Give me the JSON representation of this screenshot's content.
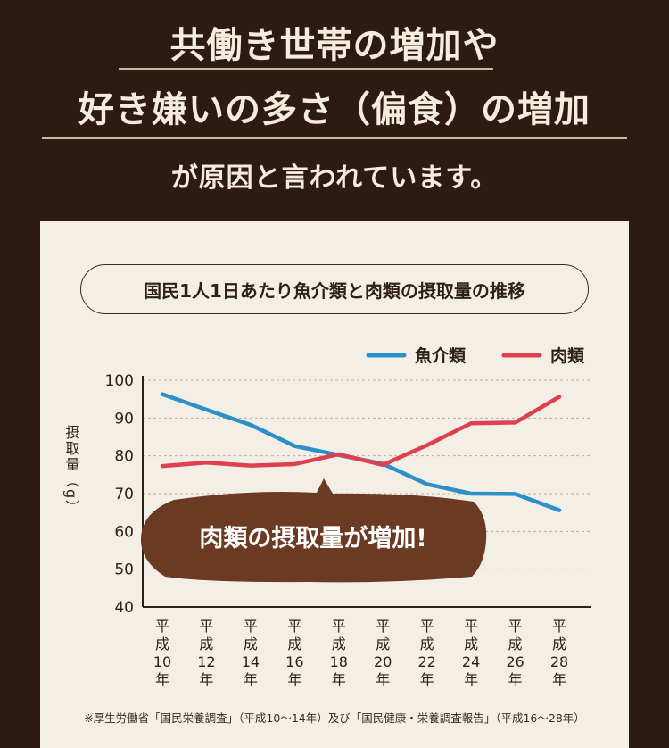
{
  "headline": {
    "line1": "共働き世帯の増加や",
    "line2": "好き嫌いの多さ（偏食）の増加",
    "line3": "が原因と言われています。"
  },
  "colors": {
    "background": "#2d1a12",
    "panel": "#f3efe6",
    "fish": "#2b8fc9",
    "meat": "#e0404e",
    "bubble": "#6b3a22"
  },
  "chart_data": {
    "type": "line",
    "title": "国民1人1日あたり魚介類と肉類の摂取量の推移",
    "ylabel": "摂取量（g）",
    "ylim": [
      40,
      100
    ],
    "yticks": [
      "100",
      "90",
      "80",
      "70",
      "60",
      "50",
      "40"
    ],
    "categories": [
      "平成10年",
      "平成12年",
      "平成14年",
      "平成16年",
      "平成18年",
      "平成20年",
      "平成22年",
      "平成24年",
      "平成26年",
      "平成28年"
    ],
    "category_labels": [
      [
        "平",
        "成",
        "10",
        "年"
      ],
      [
        "平",
        "成",
        "12",
        "年"
      ],
      [
        "平",
        "成",
        "14",
        "年"
      ],
      [
        "平",
        "成",
        "16",
        "年"
      ],
      [
        "平",
        "成",
        "18",
        "年"
      ],
      [
        "平",
        "成",
        "20",
        "年"
      ],
      [
        "平",
        "成",
        "22",
        "年"
      ],
      [
        "平",
        "成",
        "24",
        "年"
      ],
      [
        "平",
        "成",
        "26",
        "年"
      ],
      [
        "平",
        "成",
        "28",
        "年"
      ]
    ],
    "series": [
      {
        "name": "魚介類",
        "color": "#2b8fc9",
        "values": [
          96.3,
          92.2,
          88.2,
          82.6,
          80.2,
          77.9,
          72.5,
          70.0,
          69.9,
          65.6
        ]
      },
      {
        "name": "肉類",
        "color": "#e0404e",
        "values": [
          77.3,
          78.2,
          77.4,
          77.8,
          80.4,
          77.6,
          82.8,
          88.6,
          88.8,
          95.6
        ]
      }
    ],
    "legend_position": "top-right",
    "grid": true,
    "annotation": "肉類の摂取量が増加!",
    "source": "※厚生労働省「国民栄養調査」（平成10〜14年）及び「国民健康・栄養調査報告」（平成16〜28年）"
  }
}
